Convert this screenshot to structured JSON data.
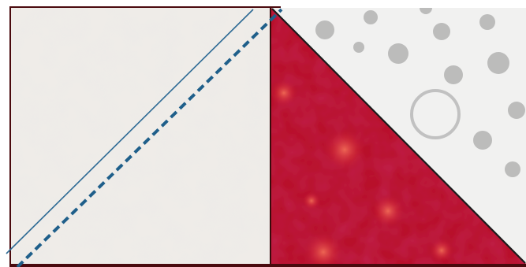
{
  "figure": {
    "panels": [
      {
        "id": "left",
        "fabric": "white-tone-on-tone",
        "sewing_line": "diagonal-dashed",
        "cutting_line": "diagonal-solid"
      },
      {
        "id": "right",
        "fabric_lower": "red-print",
        "fabric_upper": "white-with-gray-dots"
      }
    ],
    "colors": {
      "frame": "#4a0a0e",
      "white_fabric": "#efece8",
      "white_fabric_shade": "#d9d6d2",
      "red_fabric": "#b8102a",
      "red_fabric_light": "#e64a45",
      "dot_fabric": "#f1f1f0",
      "dot": "#a9a9a9",
      "sewing_line": "#1f5f8a",
      "cutting_line": "#2d6a94"
    }
  }
}
